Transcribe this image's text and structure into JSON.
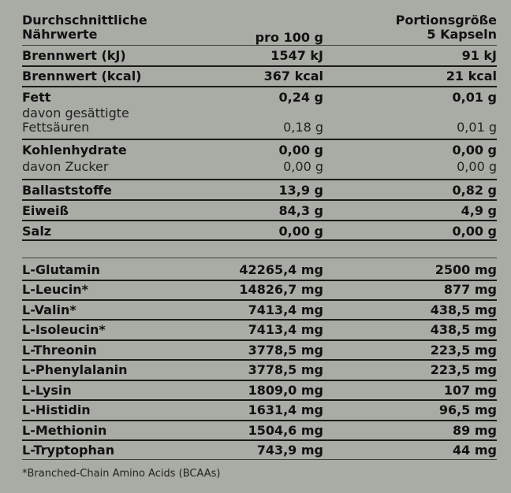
{
  "header": {
    "col1_line1": "Durchschnittliche",
    "col1_line2": "Nährwerte",
    "col2": "pro 100 g",
    "col3_line1": "Portionsgröße",
    "col3_line2": "5 Kapseln"
  },
  "nutrients": [
    {
      "label": "Brennwert (kJ)",
      "per100": "1547 kJ",
      "portion": "91 kJ"
    },
    {
      "label": "Brennwert (kcal)",
      "per100": "367 kcal",
      "portion": "21 kcal"
    },
    {
      "label": "Fett",
      "per100": "0,24 g",
      "portion": "0,01 g"
    },
    {
      "label_line1": "davon gesättigte",
      "label_line2": "Fettsäuren",
      "per100": "0,18 g",
      "portion": "0,01 g"
    },
    {
      "label": "Kohlenhydrate",
      "per100": "0,00 g",
      "portion": "0,00 g"
    },
    {
      "label": "davon Zucker",
      "per100": "0,00 g",
      "portion": "0,00 g"
    },
    {
      "label": "Ballaststoffe",
      "per100": "13,9 g",
      "portion": "0,82 g"
    },
    {
      "label": "Eiweiß",
      "per100": "84,3 g",
      "portion": "4,9 g"
    },
    {
      "label": "Salz",
      "per100": "0,00 g",
      "portion": "0,00 g"
    }
  ],
  "amino_acids": [
    {
      "label": "L-Glutamin",
      "per100": "42265,4 mg",
      "portion": "2500 mg"
    },
    {
      "label": "L-Leucin*",
      "per100": "14826,7 mg",
      "portion": "877 mg"
    },
    {
      "label": "L-Valin*",
      "per100": "7413,4 mg",
      "portion": "438,5 mg"
    },
    {
      "label": "L-Isoleucin*",
      "per100": "7413,4 mg",
      "portion": "438,5 mg"
    },
    {
      "label": "L-Threonin",
      "per100": "3778,5 mg",
      "portion": "223,5 mg"
    },
    {
      "label": "L-Phenylalanin",
      "per100": "3778,5 mg",
      "portion": "223,5 mg"
    },
    {
      "label": "L-Lysin",
      "per100": "1809,0 mg",
      "portion": "107 mg"
    },
    {
      "label": "L-Histidin",
      "per100": "1631,4 mg",
      "portion": "96,5 mg"
    },
    {
      "label": "L-Methionin",
      "per100": "1504,6 mg",
      "portion": "89 mg"
    },
    {
      "label": "L-Tryptophan",
      "per100": "743,9 mg",
      "portion": "44 mg"
    }
  ],
  "footnote": "*Branched-Chain Amino Acids (BCAAs)"
}
